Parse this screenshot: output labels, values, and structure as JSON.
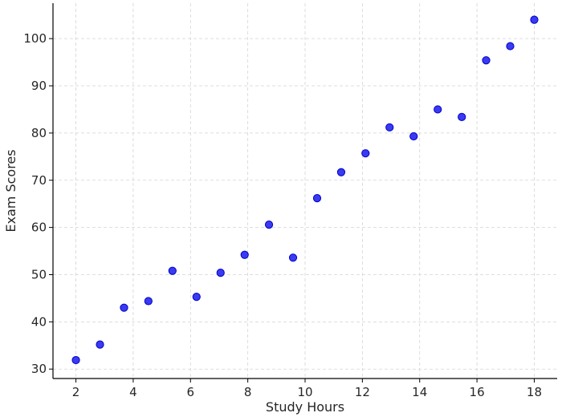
{
  "chart_data": {
    "type": "scatter",
    "title": "",
    "xlabel": "Study Hours",
    "ylabel": "Exam Scores",
    "xlim": [
      1.2,
      18.8
    ],
    "ylim": [
      28,
      107.5
    ],
    "xticks": [
      2,
      4,
      6,
      8,
      10,
      12,
      14,
      16,
      18
    ],
    "yticks": [
      30,
      40,
      50,
      60,
      70,
      80,
      90,
      100
    ],
    "grid": true,
    "legend": "none",
    "marker_color": "#3a3af0",
    "series": [
      {
        "x": [
          2.0,
          2.84,
          3.68,
          4.53,
          5.37,
          6.21,
          7.05,
          7.89,
          8.74,
          9.58,
          10.42,
          11.26,
          12.11,
          12.95,
          13.79,
          14.63,
          15.47,
          16.32,
          17.16,
          18.0
        ],
        "y": [
          31.9,
          35.2,
          43.0,
          44.4,
          50.8,
          45.3,
          50.4,
          54.2,
          60.6,
          53.6,
          66.2,
          71.7,
          75.7,
          81.2,
          79.3,
          85.0,
          83.4,
          95.4,
          98.4,
          104.0
        ]
      }
    ]
  }
}
